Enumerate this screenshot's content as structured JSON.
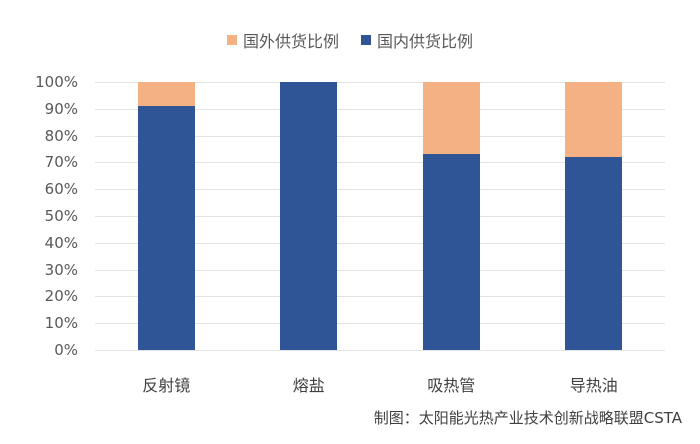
{
  "legend": {
    "items": [
      {
        "label": "国外供货比例",
        "color": "#F4B183"
      },
      {
        "label": "国内供货比例",
        "color": "#2F5597"
      }
    ]
  },
  "y_ticks": [
    "100%",
    "90%",
    "80%",
    "70%",
    "60%",
    "50%",
    "40%",
    "30%",
    "20%",
    "10%",
    "0%"
  ],
  "x_ticks": [
    "反射镜",
    "熔盐",
    "吸热管",
    "导热油"
  ],
  "source": "制图：太阳能光热产业技术创新战略联盟CSTA",
  "chart_data": {
    "type": "bar",
    "stacked": true,
    "percent_stacked": true,
    "title": "",
    "categories": [
      "反射镜",
      "熔盐",
      "吸热管",
      "导热油"
    ],
    "series": [
      {
        "name": "国内供货比例",
        "color": "#2F5597",
        "values": [
          91,
          100,
          73,
          72
        ]
      },
      {
        "name": "国外供货比例",
        "color": "#F4B183",
        "values": [
          9,
          0,
          27,
          28
        ]
      }
    ],
    "xlabel": "",
    "ylabel": "",
    "ylim": [
      0,
      100
    ],
    "y_tick_format": "percent",
    "y_tick_step": 10,
    "grid": true,
    "legend_position": "top",
    "annotation": "制图：太阳能光热产业技术创新战略联盟CSTA"
  }
}
